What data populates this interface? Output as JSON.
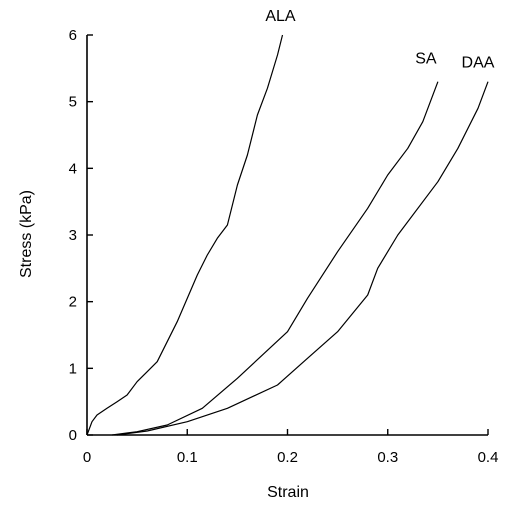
{
  "chart_data": {
    "type": "line",
    "title": "",
    "xlabel": "Strain",
    "ylabel": "Stress (kPa)",
    "xlim": [
      0,
      0.4
    ],
    "ylim": [
      0,
      6
    ],
    "xticks": [
      "0",
      "0.1",
      "0.2",
      "0.3",
      "0.4"
    ],
    "yticks": [
      "0",
      "1",
      "2",
      "3",
      "4",
      "5",
      "6"
    ],
    "grid": false,
    "legend": "none",
    "line_color": "#000000",
    "series": [
      {
        "name": "ALA",
        "label_anchor": "end",
        "points": [
          [
            0,
            0
          ],
          [
            0.005,
            0.2
          ],
          [
            0.01,
            0.3
          ],
          [
            0.02,
            0.4
          ],
          [
            0.03,
            0.5
          ],
          [
            0.04,
            0.6
          ],
          [
            0.05,
            0.8
          ],
          [
            0.06,
            0.95
          ],
          [
            0.07,
            1.1
          ],
          [
            0.08,
            1.4
          ],
          [
            0.09,
            1.7
          ],
          [
            0.1,
            2.05
          ],
          [
            0.11,
            2.4
          ],
          [
            0.12,
            2.7
          ],
          [
            0.13,
            2.95
          ],
          [
            0.14,
            3.15
          ],
          [
            0.15,
            3.75
          ],
          [
            0.16,
            4.2
          ],
          [
            0.17,
            4.8
          ],
          [
            0.18,
            5.2
          ],
          [
            0.19,
            5.7
          ],
          [
            0.195,
            6.0
          ]
        ]
      },
      {
        "name": "SA",
        "label_anchor": "end",
        "points": [
          [
            0.025,
            0.0
          ],
          [
            0.05,
            0.05
          ],
          [
            0.08,
            0.15
          ],
          [
            0.115,
            0.4
          ],
          [
            0.15,
            0.85
          ],
          [
            0.2,
            1.55
          ],
          [
            0.22,
            2.05
          ],
          [
            0.25,
            2.75
          ],
          [
            0.28,
            3.4
          ],
          [
            0.3,
            3.9
          ],
          [
            0.32,
            4.3
          ],
          [
            0.335,
            4.7
          ],
          [
            0.35,
            5.3
          ]
        ]
      },
      {
        "name": "DAA",
        "label_anchor": "end",
        "points": [
          [
            0.03,
            0.0
          ],
          [
            0.06,
            0.06
          ],
          [
            0.1,
            0.2
          ],
          [
            0.14,
            0.4
          ],
          [
            0.19,
            0.75
          ],
          [
            0.22,
            1.15
          ],
          [
            0.25,
            1.55
          ],
          [
            0.28,
            2.1
          ],
          [
            0.29,
            2.5
          ],
          [
            0.31,
            3.0
          ],
          [
            0.35,
            3.8
          ],
          [
            0.37,
            4.3
          ],
          [
            0.39,
            4.9
          ],
          [
            0.4,
            5.3
          ]
        ]
      }
    ]
  }
}
